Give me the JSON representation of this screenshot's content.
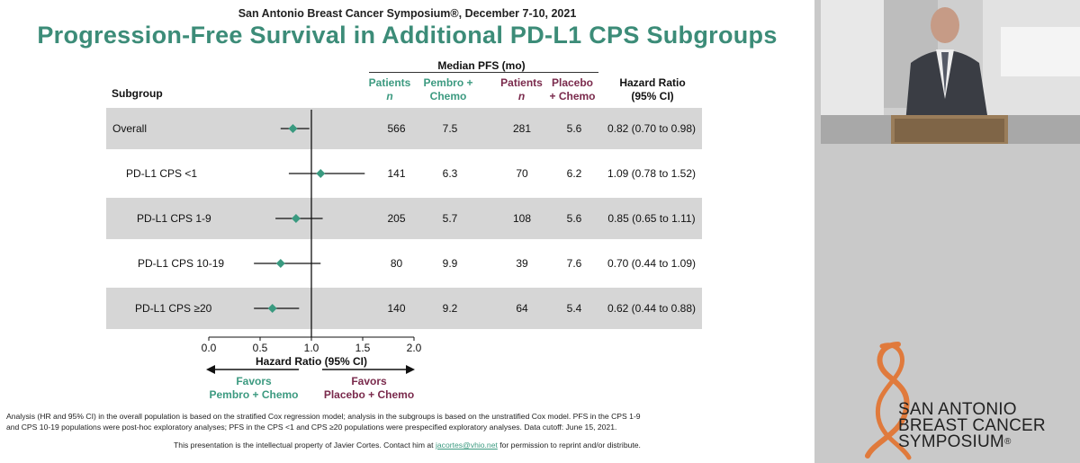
{
  "slide": {
    "conference": "San Antonio Breast Cancer Symposium®, December 7-10, 2021",
    "title": "Progression-Free Survival in Additional PD-L1 CPS Subgroups",
    "headers": {
      "subgroup": "Subgroup",
      "median_pfs": "Median PFS (mo)",
      "patients_pembro": [
        "Patients",
        "n"
      ],
      "pembro": [
        "Pembro +",
        "Chemo"
      ],
      "patients_placebo": [
        "Patients",
        "n"
      ],
      "placebo": [
        "Placebo",
        "+ Chemo"
      ],
      "hr": [
        "Hazard Ratio",
        "(95% CI)"
      ]
    },
    "favors_left": [
      "Favors",
      "Pembro + Chemo"
    ],
    "favors_right": [
      "Favors",
      "Placebo + Chemo"
    ],
    "footnote_lines": [
      "Analysis (HR and 95% CI) in the overall population is based on the stratified Cox regression model; analysis in the subgroups is based on the unstratified Cox model. PFS in the CPS 1-9",
      "and CPS 10-19 populations were post-hoc exploratory analyses; PFS in the CPS <1 and CPS ≥20 populations were prespecified exploratory analyses. Data cutoff: June 15, 2021."
    ],
    "ip_before": "This presentation is the intellectual property of Javier Cortes. Contact him at ",
    "ip_email": "jacortes@vhio.net",
    "ip_after": " for permission to reprint and/or distribute.",
    "colors": {
      "title": "#3c8c78",
      "pembro": "#3c9a80",
      "placebo": "#7a2a4c",
      "band": "#d6d6d6",
      "marker": "#3a9a80"
    }
  },
  "chart_data": {
    "type": "forest",
    "xlabel": "Hazard Ratio (95% CI)",
    "xlim": [
      0.0,
      2.0
    ],
    "xticks": [
      "0.0",
      "0.5",
      "1.0",
      "1.5",
      "2.0"
    ],
    "reference_line": 1.0,
    "rows": [
      {
        "subgroup": "Overall",
        "pembro_n": "566",
        "pembro_pfs": "7.5",
        "placebo_n": "281",
        "placebo_pfs": "5.6",
        "hr_text": "0.82 (0.70 to 0.98)",
        "hr": 0.82,
        "lo": 0.7,
        "hi": 0.98
      },
      {
        "subgroup": "PD-L1 CPS <1",
        "pembro_n": "141",
        "pembro_pfs": "6.3",
        "placebo_n": "70",
        "placebo_pfs": "6.2",
        "hr_text": "1.09 (0.78 to 1.52)",
        "hr": 1.09,
        "lo": 0.78,
        "hi": 1.52
      },
      {
        "subgroup": "PD-L1 CPS 1-9",
        "pembro_n": "205",
        "pembro_pfs": "5.7",
        "placebo_n": "108",
        "placebo_pfs": "5.6",
        "hr_text": "0.85 (0.65 to 1.11)",
        "hr": 0.85,
        "lo": 0.65,
        "hi": 1.11
      },
      {
        "subgroup": "PD-L1 CPS 10-19",
        "pembro_n": "80",
        "pembro_pfs": "9.9",
        "placebo_n": "39",
        "placebo_pfs": "7.6",
        "hr_text": "0.70 (0.44 to 1.09)",
        "hr": 0.7,
        "lo": 0.44,
        "hi": 1.09
      },
      {
        "subgroup": "PD-L1 CPS ≥20",
        "pembro_n": "140",
        "pembro_pfs": "9.2",
        "placebo_n": "64",
        "placebo_pfs": "5.4",
        "hr_text": "0.62 (0.44 to 0.88)",
        "hr": 0.62,
        "lo": 0.44,
        "hi": 0.88
      }
    ]
  },
  "logo": {
    "line1": "SAN ANTONIO",
    "line2": "BREAST CANCER",
    "line3": "SYMPOSIUM",
    "mark": "®"
  }
}
